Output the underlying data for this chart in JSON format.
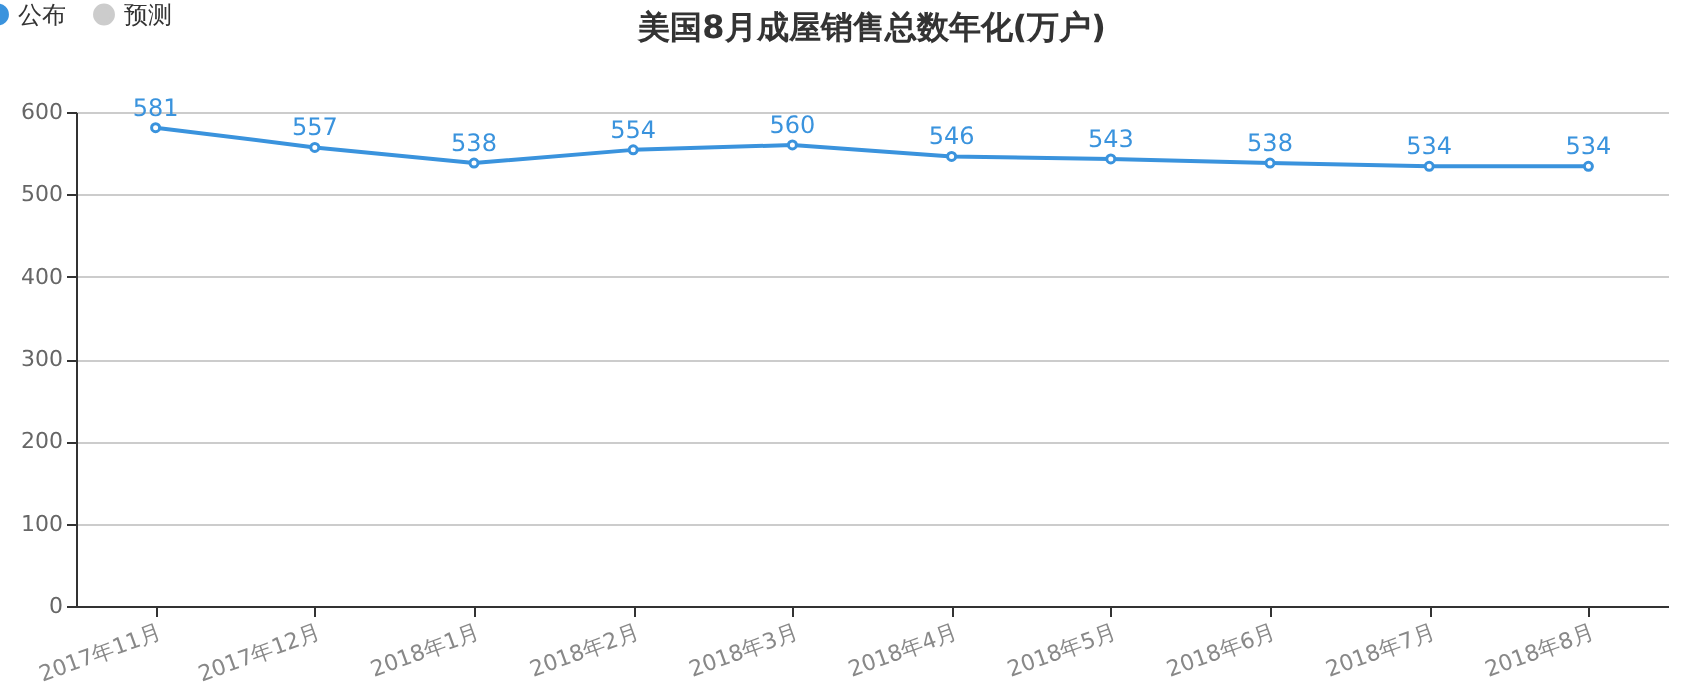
{
  "chart_data": {
    "type": "line",
    "title": "美国8月成屋销售总数年化(万户)",
    "categories": [
      "2017年11月",
      "2017年12月",
      "2018年1月",
      "2018年2月",
      "2018年3月",
      "2018年4月",
      "2018年5月",
      "2018年6月",
      "2018年7月",
      "2018年8月"
    ],
    "series": [
      {
        "name": "公布",
        "color": "#3a93dd",
        "values": [
          581,
          557,
          538,
          554,
          560,
          546,
          543,
          538,
          534,
          534
        ]
      },
      {
        "name": "预测",
        "color": "#cccccc",
        "values": [
          null,
          null,
          null,
          null,
          null,
          null,
          null,
          null,
          null,
          null
        ]
      }
    ],
    "ylim": [
      0,
      600
    ],
    "yticks": [
      0,
      100,
      200,
      300,
      400,
      500,
      600
    ],
    "grid": "y",
    "legend": "top left",
    "marker": "circle",
    "data_labels": true
  }
}
